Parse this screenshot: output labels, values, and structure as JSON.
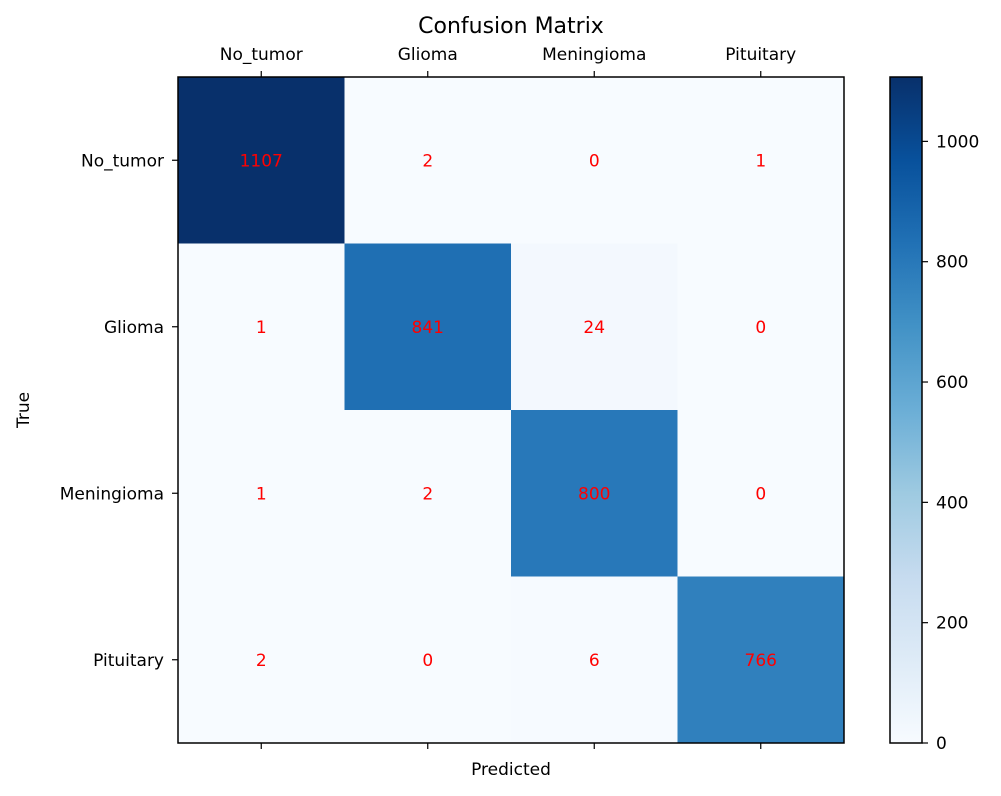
{
  "chart_data": {
    "type": "heatmap",
    "title": "Confusion Matrix",
    "xlabel": "Predicted",
    "ylabel": "True",
    "x_categories": [
      "No_tumor",
      "Glioma",
      "Meningioma",
      "Pituitary"
    ],
    "y_categories": [
      "No_tumor",
      "Glioma",
      "Meningioma",
      "Pituitary"
    ],
    "values": [
      [
        1107,
        2,
        0,
        1
      ],
      [
        1,
        841,
        24,
        0
      ],
      [
        1,
        2,
        800,
        0
      ],
      [
        2,
        0,
        6,
        766
      ]
    ],
    "colormap": "Blues",
    "value_range": [
      0,
      1107
    ],
    "colorbar_ticks": [
      0,
      200,
      400,
      600,
      800,
      1000
    ],
    "annotation_color": "#ff0000",
    "x_tick_position": "top",
    "grid": false
  }
}
